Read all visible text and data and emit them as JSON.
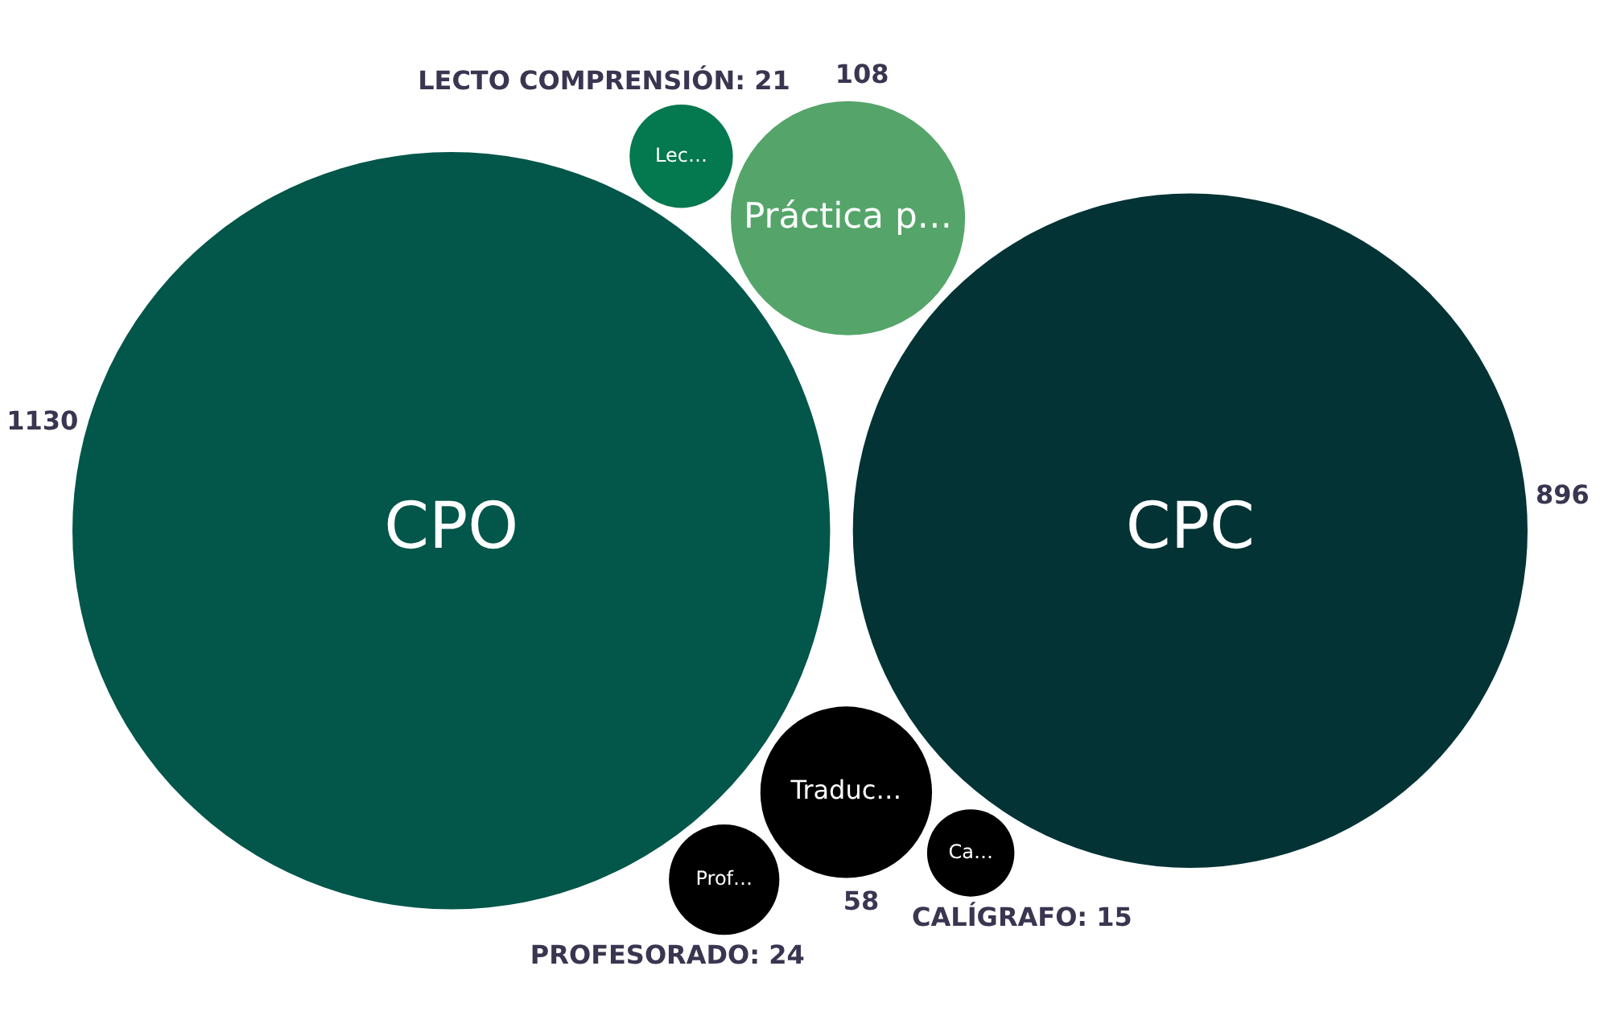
{
  "chart_data": {
    "type": "other",
    "categories": [
      "CPO",
      "CPC",
      "Práctica p…",
      "Traduc…",
      "Prof…",
      "Lec…",
      "Ca…"
    ],
    "values": [
      1130,
      896,
      108,
      58,
      24,
      21,
      15
    ],
    "value_labels": [
      "1130",
      "896",
      "108",
      "58",
      "PROFESORADO: 24",
      "LECTO COMPRENSIÓN: 21",
      "CALÍGRAFO: 15"
    ],
    "colors": [
      "#02564a",
      "#033335",
      "#55a56a",
      "#000000",
      "#000000",
      "#04784f",
      "#000000"
    ]
  }
}
